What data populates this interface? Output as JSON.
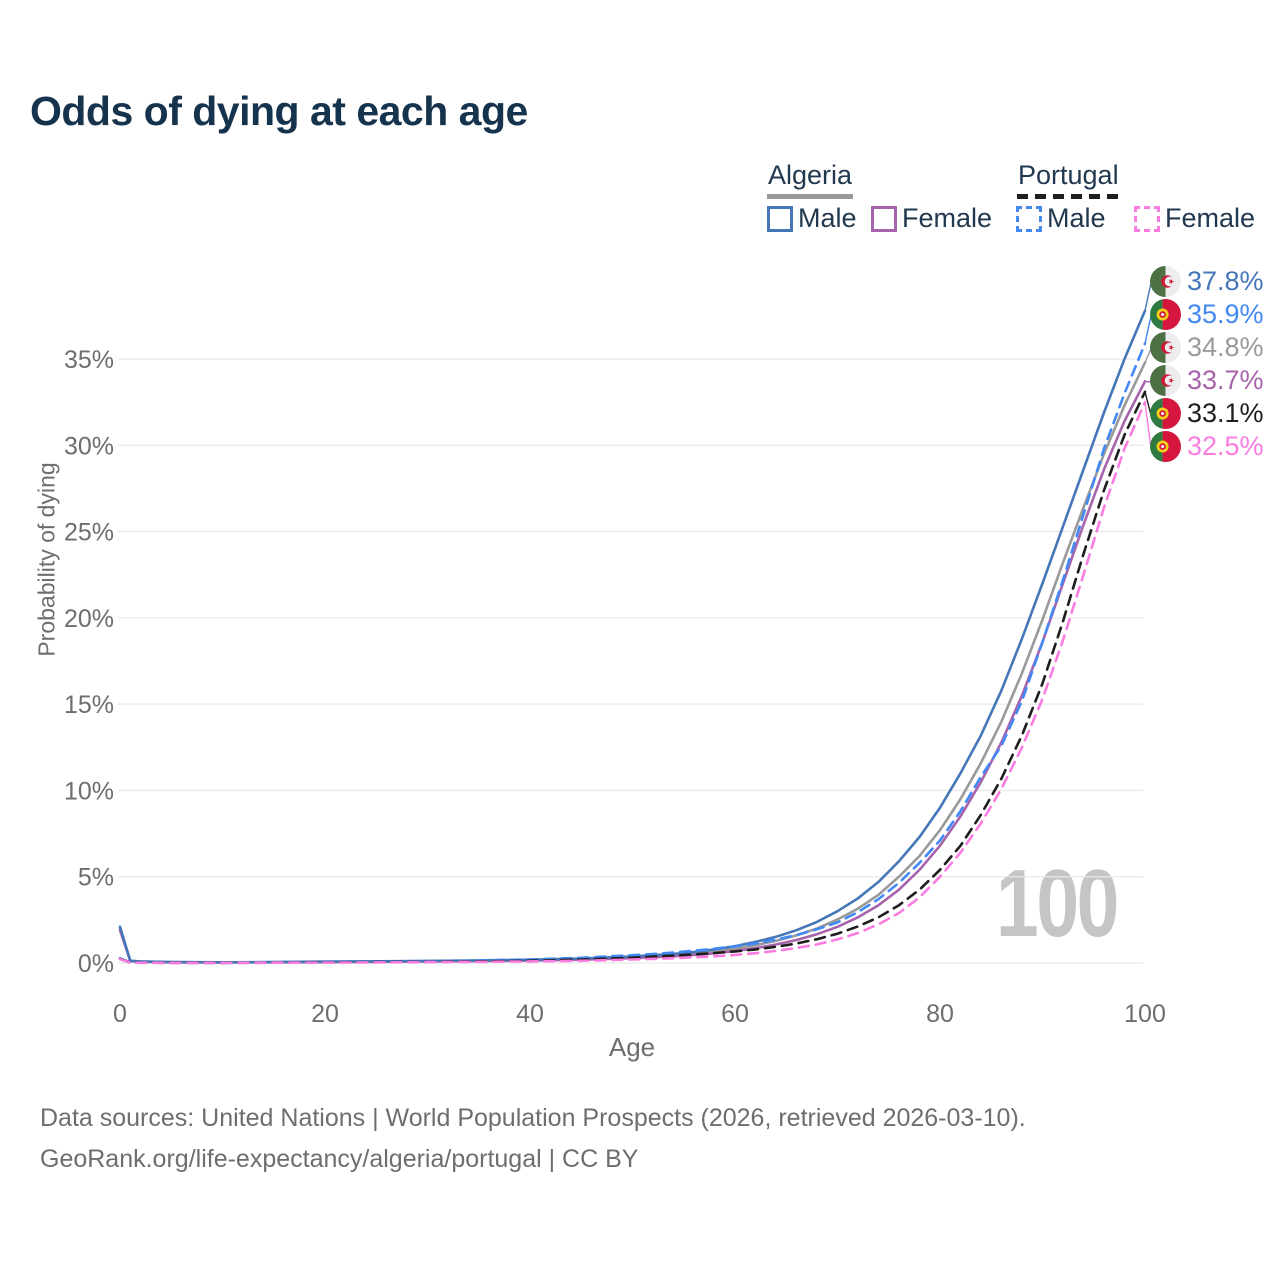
{
  "header": {
    "title": "Odds of dying at each age"
  },
  "legend": {
    "algeria": {
      "label": "Algeria",
      "male": "Male",
      "female": "Female"
    },
    "portugal": {
      "label": "Portugal",
      "male": "Male",
      "female": "Female"
    }
  },
  "colors": {
    "algeria_male": "#4577b8",
    "portugal_male": "#4289f4",
    "algeria_both": "#9a9a9a",
    "algeria_female": "#a763ab",
    "portugal_both": "#1e1e1e",
    "portugal_female": "#fb7ce1",
    "title_text": "#16334d",
    "legend_text": "#22384f",
    "axis_text": "#6e6e6e",
    "gridline": "#e9e9e9",
    "watermark": "#c5c5c5",
    "flag_algeria_green": "#4d7145",
    "flag_algeria_white": "#ededed",
    "flag_algeria_red": "#cf1b3a",
    "flag_portugal_green": "#2f7a40",
    "flag_portugal_red": "#d5173f",
    "flag_portugal_yellow": "#f6cf17"
  },
  "chart_data": {
    "type": "line",
    "title": "Odds of dying at each age",
    "xlabel": "Age",
    "ylabel": "Probability of dying",
    "x_ticks": [
      0,
      20,
      40,
      60,
      80,
      100
    ],
    "y_tick_labels": [
      "0%",
      "5%",
      "10%",
      "15%",
      "20%",
      "25%",
      "30%",
      "35%"
    ],
    "y_tick_step_pct": 5,
    "xlim": [
      0,
      100
    ],
    "ylim_pct": [
      0,
      38
    ],
    "grid": "horizontal",
    "legend_position": "top-right",
    "watermark": "100",
    "ages": [
      0,
      1,
      2,
      5,
      10,
      15,
      20,
      25,
      30,
      35,
      40,
      45,
      50,
      52,
      54,
      56,
      58,
      60,
      62,
      64,
      66,
      68,
      70,
      72,
      74,
      76,
      78,
      80,
      82,
      84,
      86,
      88,
      90,
      92,
      94,
      96,
      98,
      100
    ],
    "series": [
      {
        "name": "Algeria Male",
        "country": "algeria",
        "sex": "male",
        "style": "solid",
        "color_key": "algeria_male",
        "end_label": "37.8%",
        "values": [
          2.1,
          0.13,
          0.09,
          0.05,
          0.04,
          0.05,
          0.08,
          0.1,
          0.12,
          0.15,
          0.19,
          0.26,
          0.38,
          0.45,
          0.53,
          0.64,
          0.79,
          0.98,
          1.22,
          1.52,
          1.9,
          2.38,
          3.0,
          3.75,
          4.7,
          5.9,
          7.3,
          9.0,
          11.0,
          13.2,
          15.8,
          18.8,
          22.0,
          25.3,
          28.6,
          31.9,
          35.0,
          37.8
        ]
      },
      {
        "name": "Portugal Male",
        "country": "portugal",
        "sex": "male",
        "style": "dashed",
        "color_key": "portugal_male",
        "end_label": "35.9%",
        "values": [
          0.26,
          0.03,
          0.02,
          0.01,
          0.01,
          0.03,
          0.06,
          0.08,
          0.1,
          0.14,
          0.2,
          0.3,
          0.45,
          0.52,
          0.61,
          0.71,
          0.83,
          0.97,
          1.13,
          1.35,
          1.62,
          1.95,
          2.35,
          2.95,
          3.7,
          4.65,
          5.8,
          7.1,
          8.8,
          10.8,
          12.6,
          15.2,
          18.6,
          22.2,
          26.0,
          29.8,
          33.0,
          35.9
        ]
      },
      {
        "name": "Algeria",
        "country": "algeria",
        "sex": "both",
        "style": "solid",
        "color_key": "algeria_both",
        "end_label": "34.8%",
        "values": [
          2.0,
          0.12,
          0.08,
          0.045,
          0.035,
          0.045,
          0.065,
          0.085,
          0.105,
          0.13,
          0.17,
          0.23,
          0.33,
          0.39,
          0.46,
          0.55,
          0.67,
          0.83,
          1.03,
          1.28,
          1.6,
          2.0,
          2.52,
          3.15,
          3.95,
          5.0,
          6.2,
          7.7,
          9.5,
          11.6,
          14.0,
          16.8,
          19.9,
          23.2,
          26.4,
          29.5,
          32.3,
          34.8
        ]
      },
      {
        "name": "Algeria Female",
        "country": "algeria",
        "sex": "female",
        "style": "solid",
        "color_key": "algeria_female",
        "end_label": "33.7%",
        "values": [
          1.9,
          0.11,
          0.07,
          0.04,
          0.03,
          0.04,
          0.05,
          0.065,
          0.085,
          0.11,
          0.14,
          0.19,
          0.28,
          0.33,
          0.39,
          0.47,
          0.56,
          0.69,
          0.86,
          1.07,
          1.33,
          1.67,
          2.1,
          2.65,
          3.35,
          4.25,
          5.4,
          6.8,
          8.5,
          10.5,
          12.8,
          15.5,
          18.6,
          22.0,
          25.4,
          28.6,
          31.4,
          33.7
        ]
      },
      {
        "name": "Portugal",
        "country": "portugal",
        "sex": "both",
        "style": "dashed",
        "color_key": "portugal_both",
        "end_label": "33.1%",
        "values": [
          0.24,
          0.025,
          0.015,
          0.01,
          0.008,
          0.02,
          0.04,
          0.055,
          0.07,
          0.095,
          0.135,
          0.2,
          0.31,
          0.37,
          0.43,
          0.5,
          0.58,
          0.67,
          0.79,
          0.94,
          1.13,
          1.38,
          1.7,
          2.12,
          2.65,
          3.35,
          4.25,
          5.4,
          6.8,
          8.6,
          10.7,
          13.2,
          16.2,
          19.8,
          23.7,
          27.4,
          30.6,
          33.1
        ]
      },
      {
        "name": "Portugal Female",
        "country": "portugal",
        "sex": "female",
        "style": "dashed",
        "color_key": "portugal_female",
        "end_label": "32.5%",
        "values": [
          0.22,
          0.02,
          0.012,
          0.008,
          0.007,
          0.015,
          0.025,
          0.035,
          0.05,
          0.065,
          0.09,
          0.13,
          0.2,
          0.24,
          0.28,
          0.33,
          0.39,
          0.47,
          0.57,
          0.7,
          0.87,
          1.08,
          1.37,
          1.74,
          2.24,
          2.9,
          3.8,
          5.0,
          6.4,
          8.1,
          10.1,
          12.5,
          15.3,
          18.7,
          22.5,
          26.4,
          29.8,
          32.5
        ]
      }
    ]
  },
  "footer": {
    "line1": "Data sources: United Nations | World Population Prospects (2026, retrieved 2026-03-10).",
    "line2": "GeoRank.org/life-expectancy/algeria/portugal | CC BY"
  }
}
